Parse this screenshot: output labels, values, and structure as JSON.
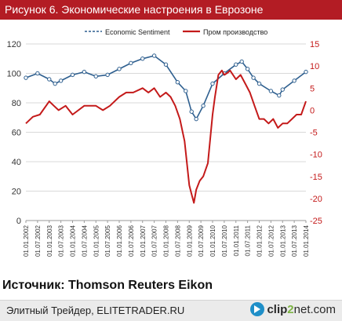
{
  "header": {
    "title": "Рисунок 6. Экономические настроения в Еврозоне"
  },
  "source": "Источник: Thomson Reuters Eikon",
  "footer": {
    "text": "Элитный Трейдер, ELITETRADER.RU",
    "brand_a": "clip",
    "brand_b": "2",
    "brand_c": "net.com",
    "brand_icon": "play-arrow-icon"
  },
  "chart_data": {
    "type": "line",
    "title": "",
    "xlabel": "",
    "x_ticks": [
      "01.01.2002",
      "01.07.2002",
      "01.01.2003",
      "01.07.2003",
      "01.01.2004",
      "01.07.2004",
      "01.01.2005",
      "01.07.2005",
      "01.01.2006",
      "01.07.2006",
      "01.01.2007",
      "01.07.2007",
      "01.01.2008",
      "01.07.2008",
      "01.01.2009",
      "01.07.2009",
      "01.01.2010",
      "01.07.2010",
      "01.01.2011",
      "01.07.2011",
      "01.01.2012",
      "01.07.2012",
      "01.01.2013",
      "01.07.2013",
      "01.01.2014"
    ],
    "left_axis": {
      "min": 0,
      "max": 120,
      "ticks": [
        0,
        20,
        40,
        60,
        80,
        100,
        120
      ]
    },
    "right_axis": {
      "min": -25,
      "max": 15,
      "ticks": [
        15,
        10,
        5,
        0,
        -5,
        -10,
        -15,
        -20,
        -25
      ]
    },
    "grid": true,
    "legend_position": "top",
    "series": [
      {
        "name": "Economic Sentiment",
        "color": "#2e5f8f",
        "axis": "left",
        "style": "line-with-hollow-markers",
        "x": [
          2002.0,
          2002.5,
          2003.0,
          2003.25,
          2003.5,
          2004.0,
          2004.5,
          2005.0,
          2005.5,
          2006.0,
          2006.5,
          2007.0,
          2007.5,
          2008.0,
          2008.5,
          2008.85,
          2009.1,
          2009.3,
          2009.6,
          2010.0,
          2010.5,
          2011.0,
          2011.25,
          2011.5,
          2011.75,
          2012.0,
          2012.5,
          2012.85,
          2013.0,
          2013.5,
          2014.0
        ],
        "y": [
          97,
          100,
          96,
          93,
          95,
          99,
          101,
          98,
          99,
          103,
          107,
          110,
          112,
          106,
          94,
          88,
          74,
          69,
          78,
          93,
          100,
          106,
          108,
          103,
          97,
          93,
          88,
          85,
          89,
          95,
          101
        ]
      },
      {
        "name": "Пром производство",
        "color": "#c41a1a",
        "axis": "right",
        "style": "line",
        "x": [
          2002.0,
          2002.3,
          2002.6,
          2003.0,
          2003.2,
          2003.4,
          2003.7,
          2004.0,
          2004.5,
          2005.0,
          2005.3,
          2005.6,
          2006.0,
          2006.3,
          2006.6,
          2007.0,
          2007.25,
          2007.5,
          2007.75,
          2008.0,
          2008.2,
          2008.4,
          2008.6,
          2008.8,
          2008.9,
          2009.0,
          2009.1,
          2009.2,
          2009.3,
          2009.45,
          2009.6,
          2009.8,
          2010.0,
          2010.1,
          2010.25,
          2010.4,
          2010.5,
          2010.65,
          2010.75,
          2011.0,
          2011.2,
          2011.4,
          2011.6,
          2011.8,
          2012.0,
          2012.2,
          2012.4,
          2012.6,
          2012.8,
          2013.0,
          2013.2,
          2013.4,
          2013.6,
          2013.8,
          2014.0
        ],
        "y": [
          -3,
          -1.5,
          -1,
          2,
          1,
          0,
          1,
          -1,
          1,
          1,
          0,
          1,
          3,
          4,
          4,
          5,
          4,
          5,
          3,
          4,
          3,
          1,
          -2,
          -7,
          -12,
          -17,
          -19,
          -21,
          -18,
          -16,
          -15,
          -12,
          -1,
          3,
          8,
          9,
          8,
          8.5,
          9,
          7,
          8,
          6,
          4,
          1,
          -2,
          -2,
          -3,
          -2,
          -4,
          -3,
          -3,
          -2,
          -1,
          -1,
          2
        ]
      }
    ]
  }
}
